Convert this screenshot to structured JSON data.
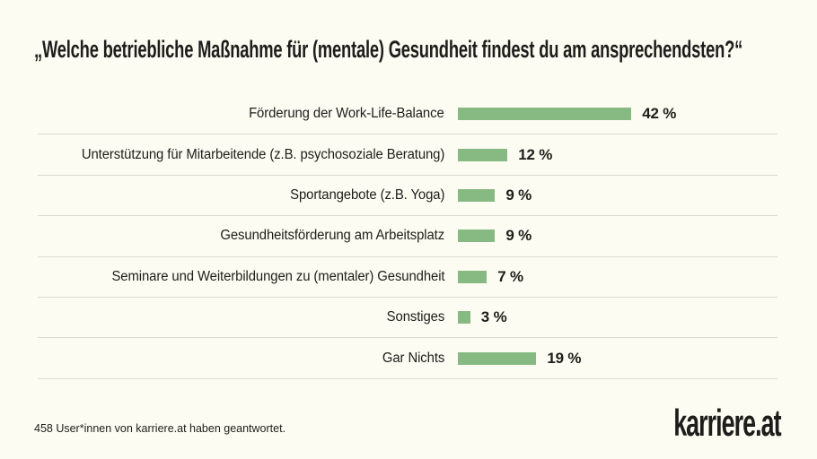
{
  "page": {
    "background_color": "#fdfcf2",
    "text_color": "#1d1d1b",
    "divider_color": "#dcdbd2"
  },
  "title": "„Welche betriebliche Maßnahme für (mentale) Gesundheit findest du am ansprechendsten?“",
  "chart_data": {
    "type": "bar",
    "orientation": "horizontal",
    "title": "„Welche betriebliche Maßnahme für (mentale) Gesundheit findest du am ansprechendsten?“",
    "categories": [
      "Förderung der Work-Life-Balance",
      "Unterstützung für Mitarbeitende (z.B. psychosoziale Beratung)",
      "Sportangebote (z.B. Yoga)",
      "Gesundheitsförderung am Arbeitsplatz",
      "Seminare und Weiterbildungen zu (mentaler) Gesundheit",
      "Sonstiges",
      "Gar Nichts"
    ],
    "values": [
      42,
      12,
      9,
      9,
      7,
      3,
      19
    ],
    "unit": "%",
    "value_labels": [
      "42 %",
      "12 %",
      "9 %",
      "9 %",
      "7 %",
      "3 %",
      "19 %"
    ],
    "bar_color": "#87b982",
    "xlim": [
      0,
      100
    ],
    "grid": false,
    "legend": false,
    "row_dividers": true
  },
  "footer": {
    "note": "458 User*innen von karriere.at haben geantwortet.",
    "logo_text": "karriere.at"
  }
}
